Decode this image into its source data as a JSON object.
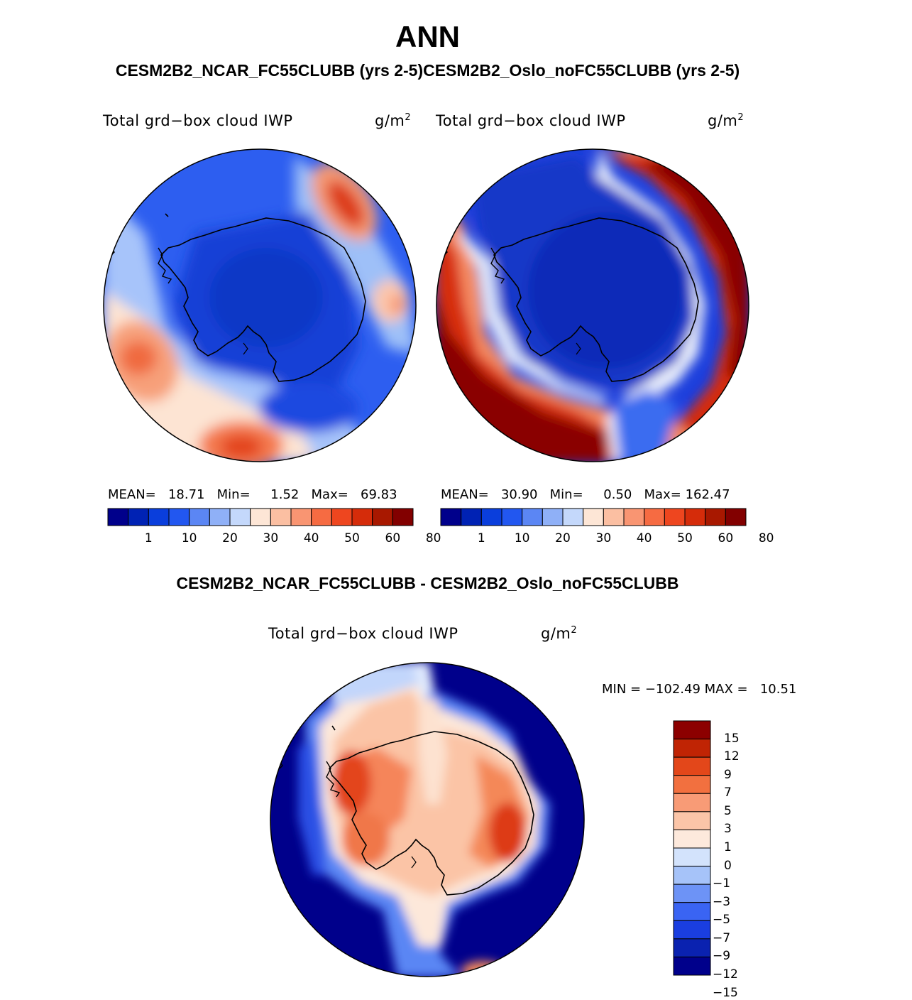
{
  "header": {
    "title": "ANN",
    "subtitle": "CESM2B2_NCAR_FC55CLUBB (yrs 2-5)CESM2B2_Oslo_noFC55CLUBB (yrs 2-5)",
    "diff_title": "CESM2B2_NCAR_FC55CLUBB - CESM2B2_Oslo_noFC55CLUBB"
  },
  "colors": {
    "sequential": [
      "#00008b",
      "#0022b4",
      "#0a3edc",
      "#2257f0",
      "#5b86f4",
      "#8fb0f7",
      "#c4d8fb",
      "#fde6d6",
      "#fbbfa2",
      "#f99572",
      "#f66b42",
      "#ee461f",
      "#d52c0a",
      "#a81800",
      "#820000"
    ],
    "diverging": [
      "#00008b",
      "#0a22b0",
      "#1a3ee0",
      "#3a64f3",
      "#6d93f6",
      "#a6c3f9",
      "#d3e3fc",
      "#fde9dc",
      "#fbc5a8",
      "#f89b76",
      "#f2703f",
      "#e3471a",
      "#c02404",
      "#8c0000"
    ]
  },
  "panels": {
    "left": {
      "variable": "Total grd−box cloud IWP",
      "units_base": "g/m",
      "units_exp": "2",
      "mean_label": "MEAN=",
      "mean": "18.71",
      "min_label": "Min=",
      "min": "1.52",
      "max_label": "Max=",
      "max": "69.83"
    },
    "right": {
      "variable": "Total grd−box cloud IWP",
      "units_base": "g/m",
      "units_exp": "2",
      "mean_label": "MEAN=",
      "mean": "30.90",
      "min_label": "Min=",
      "min": "0.50",
      "max_label": "Max=",
      "max": "162.47"
    },
    "diff": {
      "variable": "Total grd−box cloud IWP",
      "units_base": "g/m",
      "units_exp": "2",
      "min_label": "MIN =",
      "min": "−102.49",
      "max_label": "MAX =",
      "max": "10.51"
    }
  },
  "colorbar_ticks": [
    "1",
    "10",
    "20",
    "30",
    "40",
    "50",
    "60",
    "80"
  ],
  "diff_colorbar_ticks": [
    "15",
    "12",
    "9",
    "7",
    "5",
    "3",
    "1",
    "0",
    "−1",
    "−3",
    "−5",
    "−7",
    "−9",
    "−12",
    "−15"
  ]
}
